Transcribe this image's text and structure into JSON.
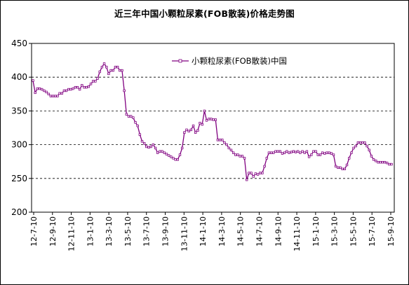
{
  "chart_data": {
    "type": "line",
    "title": "近三年中国小颗粒尿素(FOB散装)价格走势图",
    "ylim": [
      200,
      450
    ],
    "y_ticks": [
      "200",
      "250",
      "300",
      "350",
      "400",
      "450"
    ],
    "x_tick_labels": [
      "12-7-10",
      "12-9-10",
      "12-11-10",
      "13-1-10",
      "13-3-10",
      "13-5-10",
      "13-7-10",
      "13-9-10",
      "13-11-10",
      "14-1-10",
      "14-3-10",
      "14-5-10",
      "14-7-10",
      "14-9-10",
      "14-11-10",
      "15-1-10",
      "15-3-10",
      "15-5-10",
      "15-7-10",
      "15-9-10"
    ],
    "grid": "horizontal dashed",
    "legend_position": "top-center",
    "series": [
      {
        "name": "小颗粒尿素(FOB散装)中国",
        "color": "#800080",
        "values": [
          395,
          377,
          383,
          383,
          382,
          380,
          378,
          375,
          372,
          372,
          372,
          372,
          376,
          376,
          380,
          380,
          382,
          382,
          383,
          385,
          385,
          382,
          388,
          385,
          385,
          386,
          390,
          394,
          394,
          398,
          408,
          415,
          420,
          415,
          405,
          410,
          410,
          415,
          415,
          410,
          410,
          380,
          345,
          342,
          342,
          340,
          333,
          328,
          315,
          305,
          302,
          297,
          296,
          297,
          300,
          295,
          288,
          290,
          290,
          288,
          286,
          284,
          282,
          280,
          278,
          278,
          285,
          295,
          318,
          322,
          320,
          322,
          328,
          318,
          321,
          332,
          330,
          350,
          336,
          338,
          338,
          337,
          337,
          307,
          307,
          307,
          303,
          300,
          295,
          292,
          288,
          285,
          285,
          283,
          283,
          280,
          248,
          258,
          258,
          253,
          257,
          256,
          258,
          258,
          268,
          280,
          288,
          288,
          288,
          290,
          290,
          290,
          287,
          288,
          290,
          288,
          289,
          290,
          289,
          290,
          288,
          290,
          288,
          290,
          282,
          285,
          290,
          290,
          285,
          285,
          288,
          287,
          288,
          288,
          287,
          285,
          268,
          266,
          266,
          264,
          264,
          270,
          280,
          288,
          295,
          298,
          303,
          303,
          303,
          303,
          298,
          292,
          283,
          278,
          276,
          274,
          274,
          274,
          274,
          273,
          271,
          271
        ]
      },
      {
        "name": "",
        "values": []
      }
    ]
  }
}
